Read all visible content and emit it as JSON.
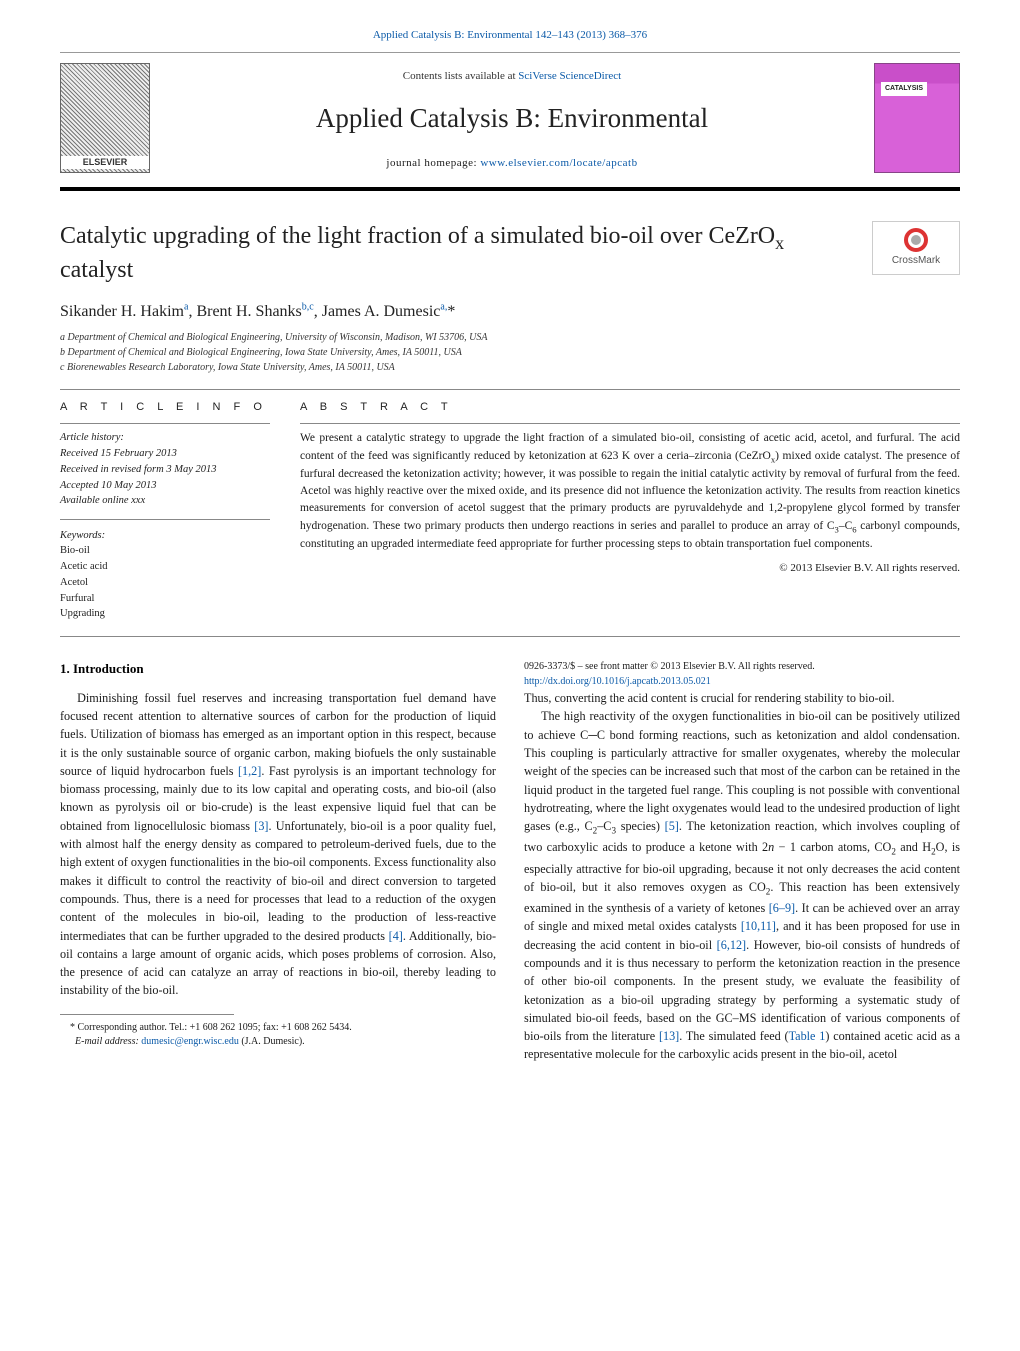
{
  "header": {
    "top_citation_prefix": "Applied Catalysis B: Environmental 142–143 (2013) 368–376",
    "contents_prefix": "Contents lists available at ",
    "contents_link": "SciVerse ScienceDirect",
    "journal_name": "Applied Catalysis B: Environmental",
    "homepage_label": "journal homepage: ",
    "homepage_link": "www.elsevier.com/locate/apcatb"
  },
  "crossmark": {
    "label": "CrossMark"
  },
  "article": {
    "title_html": "Catalytic upgrading of the light fraction of a simulated bio-oil over CeZrO<sub>x</sub> catalyst",
    "authors_html": "Sikander H. Hakim<sup>a</sup>, Brent H. Shanks<sup>b,c</sup>, James A. Dumesic<sup>a,</sup>*",
    "affiliations": [
      "a Department of Chemical and Biological Engineering, University of Wisconsin, Madison, WI 53706, USA",
      "b Department of Chemical and Biological Engineering, Iowa State University, Ames, IA 50011, USA",
      "c Biorenewables Research Laboratory, Iowa State University, Ames, IA 50011, USA"
    ]
  },
  "info": {
    "heading": "A R T I C L E   I N F O",
    "history_label": "Article history:",
    "history_lines": [
      "Received 15 February 2013",
      "Received in revised form 3 May 2013",
      "Accepted 10 May 2013",
      "Available online xxx"
    ],
    "keywords_label": "Keywords:",
    "keywords": [
      "Bio-oil",
      "Acetic acid",
      "Acetol",
      "Furfural",
      "Upgrading"
    ]
  },
  "abstract": {
    "heading": "A B S T R A C T",
    "text_html": "We present a catalytic strategy to upgrade the light fraction of a simulated bio-oil, consisting of acetic acid, acetol, and furfural. The acid content of the feed was significantly reduced by ketonization at 623 K over a ceria–zirconia (CeZrO<sub>x</sub>) mixed oxide catalyst. The presence of furfural decreased the ketonization activity; however, it was possible to regain the initial catalytic activity by removal of furfural from the feed. Acetol was highly reactive over the mixed oxide, and its presence did not influence the ketonization activity. The results from reaction kinetics measurements for conversion of acetol suggest that the primary products are pyruvaldehyde and 1,2-propylene glycol formed by transfer hydrogenation. These two primary products then undergo reactions in series and parallel to produce an array of C<sub>3</sub>–C<sub>6</sub> carbonyl compounds, constituting an upgraded intermediate feed appropriate for further processing steps to obtain transportation fuel components.",
    "copyright": "© 2013 Elsevier B.V. All rights reserved."
  },
  "body": {
    "section1_heading": "1.  Introduction",
    "p1_html": "Diminishing fossil fuel reserves and increasing transportation fuel demand have focused recent attention to alternative sources of carbon for the production of liquid fuels. Utilization of biomass has emerged as an important option in this respect, because it is the only sustainable source of organic carbon, making biofuels the only sustainable source of liquid hydrocarbon fuels <span class=\"link\">[1,2]</span>. Fast pyrolysis is an important technology for biomass processing, mainly due to its low capital and operating costs, and bio-oil (also known as pyrolysis oil or bio-crude) is the least expensive liquid fuel that can be obtained from lignocellulosic biomass <span class=\"link\">[3]</span>. Unfortunately, bio-oil is a poor quality fuel, with almost half the energy density as compared to petroleum-derived fuels, due to the high extent of oxygen functionalities in the bio-oil components. Excess functionality also makes it difficult to control the reactivity of bio-oil and direct conversion to targeted compounds. Thus, there is a need for processes that lead to a reduction of the oxygen content of the molecules in bio-oil, leading to the production of less-reactive intermediates that can be further upgraded to the desired products <span class=\"link\">[4]</span>. Additionally, bio-oil contains a large amount of organic acids, which poses problems of corrosion. Also, the presence of acid can catalyze an array of reactions in bio-oil, thereby leading to instability of the bio-oil.",
    "p2_html": "Thus, converting the acid content is crucial for rendering stability to bio-oil.",
    "p3_html": "The high reactivity of the oxygen functionalities in bio-oil can be positively utilized to achieve C─C bond forming reactions, such as ketonization and aldol condensation. This coupling is particularly attractive for smaller oxygenates, whereby the molecular weight of the species can be increased such that most of the carbon can be retained in the liquid product in the targeted fuel range. This coupling is not possible with conventional hydrotreating, where the light oxygenates would lead to the undesired production of light gases (e.g., C<sub>2</sub>–C<sub>3</sub> species) <span class=\"link\">[5]</span>. The ketonization reaction, which involves coupling of two carboxylic acids to produce a ketone with 2<i>n</i> − 1 carbon atoms, CO<sub>2</sub> and H<sub>2</sub>O, is especially attractive for bio-oil upgrading, because it not only decreases the acid content of bio-oil, but it also removes oxygen as CO<sub>2</sub>. This reaction has been extensively examined in the synthesis of a variety of ketones <span class=\"link\">[6–9]</span>. It can be achieved over an array of single and mixed metal oxides catalysts <span class=\"link\">[10,11]</span>, and it has been proposed for use in decreasing the acid content in bio-oil <span class=\"link\">[6,12]</span>. However, bio-oil consists of hundreds of compounds and it is thus necessary to perform the ketonization reaction in the presence of other bio-oil components. In the present study, we evaluate the feasibility of ketonization as a bio-oil upgrading strategy by performing a systematic study of simulated bio-oil feeds, based on the GC–MS identification of various components of bio-oils from the literature <span class=\"link\">[13]</span>. The simulated feed (<span class=\"link\">Table 1</span>) contained acetic acid as a representative molecule for the carboxylic acids present in the bio-oil, acetol"
  },
  "footnotes": {
    "corr": "* Corresponding author. Tel.: +1 608 262 1095; fax: +1 608 262 5434.",
    "email_label": "E-mail address: ",
    "email": "dumesic@engr.wisc.edu",
    "email_suffix": " (J.A. Dumesic).",
    "front_matter": "0926-3373/$ – see front matter © 2013 Elsevier B.V. All rights reserved.",
    "doi": "http://dx.doi.org/10.1016/j.apcatb.2013.05.021"
  },
  "colors": {
    "link": "#0b5aa8",
    "cover": "#c94fc9",
    "crossmark_ring": "#d33"
  }
}
